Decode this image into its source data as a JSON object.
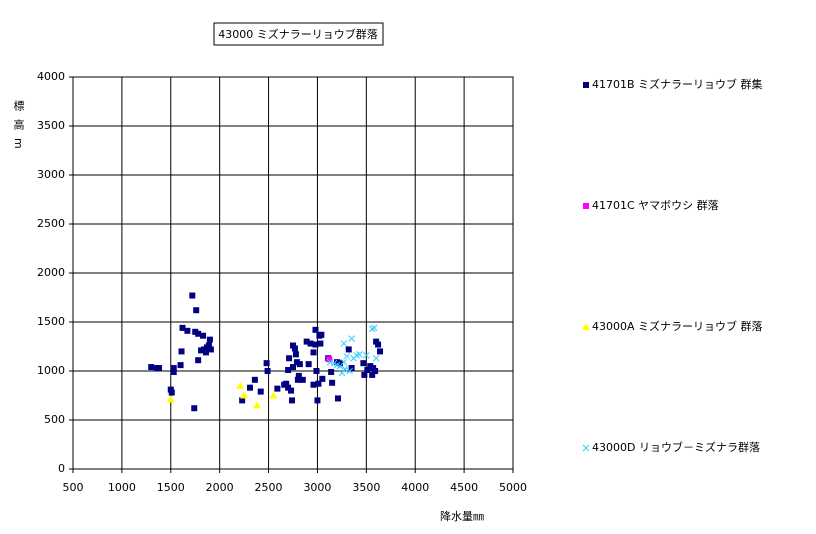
{
  "chart_data": {
    "type": "scatter",
    "title": "43000 ミズナラーリョウブ群落",
    "x_label": "降水量㎜",
    "y_label": "標高m",
    "xlim": [
      500,
      5000
    ],
    "xticks": [
      500,
      1000,
      1500,
      2000,
      2500,
      3000,
      3500,
      4000,
      4500,
      5000
    ],
    "ylim": [
      0,
      4000
    ],
    "yticks": [
      0,
      500,
      1000,
      1500,
      2000,
      2500,
      3000,
      3500,
      4000
    ],
    "grid": true,
    "legend": "right",
    "series": [
      {
        "name": "41701B ミズナラーリョウブ 群集",
        "color": "#000080",
        "marker": "square",
        "x": [
          1300,
          1360,
          1380,
          1500,
          1510,
          1530,
          1530,
          1600,
          1610,
          1620,
          1670,
          1720,
          1760,
          1740,
          1750,
          1780,
          1780,
          1810,
          1830,
          1840,
          1860,
          1870,
          1890,
          1900,
          1910,
          2230,
          2310,
          2360,
          2420,
          2480,
          2490,
          2590,
          2660,
          2680,
          2700,
          2700,
          2710,
          2730,
          2740,
          2750,
          2750,
          2770,
          2780,
          2790,
          2800,
          2810,
          2820,
          2850,
          2890,
          2910,
          2930,
          2960,
          2960,
          2980,
          2980,
          2990,
          3000,
          3010,
          3020,
          3030,
          3040,
          3050,
          3110,
          3140,
          3150,
          3200,
          3210,
          3230,
          3320,
          3350,
          3470,
          3480,
          3510,
          3540,
          3560,
          3570,
          3590,
          3600,
          3620,
          3640
        ],
        "values": [
          1040,
          1030,
          1030,
          810,
          780,
          1030,
          990,
          1060,
          1200,
          1440,
          1410,
          1770,
          1620,
          620,
          1400,
          1380,
          1110,
          1210,
          1360,
          1220,
          1190,
          1240,
          1260,
          1320,
          1220,
          700,
          830,
          910,
          790,
          1080,
          1000,
          820,
          860,
          870,
          830,
          1010,
          1130,
          800,
          700,
          1040,
          1260,
          1230,
          1170,
          1090,
          910,
          950,
          1070,
          910,
          1300,
          1070,
          1280,
          860,
          1190,
          1270,
          1420,
          1000,
          700,
          870,
          1360,
          1280,
          1370,
          920,
          1130,
          990,
          880,
          1090,
          720,
          1080,
          1220,
          1030,
          1080,
          960,
          1010,
          1050,
          960,
          1030,
          1000,
          1300,
          1270,
          1200
        ]
      },
      {
        "name": "41701C ヤマボウシ 群落",
        "color": "#ff00ff",
        "marker": "square",
        "x": [
          3120
        ],
        "values": [
          1120
        ]
      },
      {
        "name": "43000A ミズナラーリョウブ 群落",
        "color": "#ffff00",
        "marker": "triangle",
        "x": [
          1500,
          2210,
          2250,
          2380,
          2550
        ],
        "values": [
          710,
          850,
          750,
          650,
          750
        ]
      },
      {
        "name": "43000D リョウブ－ミズナラ群落",
        "color": "#33ccff",
        "marker": "x",
        "x": [
          3560,
          3580,
          3350,
          3270,
          3400,
          3430,
          3300,
          3270,
          3230,
          3280,
          3330,
          3200,
          3170,
          3130,
          3250,
          3600,
          3500,
          3370
        ],
        "values": [
          1430,
          1440,
          1330,
          1280,
          1160,
          1170,
          1150,
          1090,
          1050,
          1020,
          1000,
          1060,
          1080,
          1090,
          980,
          1130,
          1160,
          1130
        ]
      }
    ]
  }
}
